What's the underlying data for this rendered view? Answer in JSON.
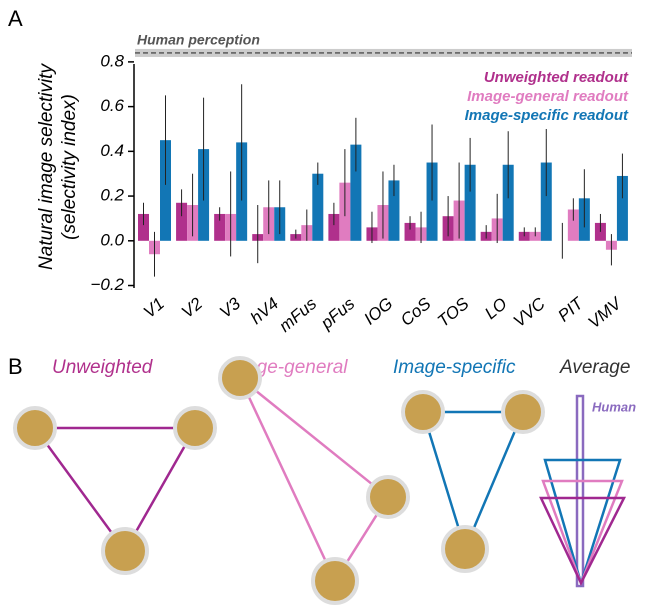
{
  "panel_label": "A",
  "chart_data": {
    "type": "bar",
    "ylabel": [
      "Natural image selectivity",
      "(selectivity index)"
    ],
    "categories": [
      "V1",
      "V2",
      "V3",
      "hV4",
      "mFus",
      "pFus",
      "IOG",
      "CoS",
      "TOS",
      "LO",
      "VVC",
      "PIT",
      "VMV"
    ],
    "series": [
      {
        "name": "Unweighted readout",
        "color": "#b0308c",
        "values": [
          0.12,
          0.17,
          0.12,
          0.03,
          0.03,
          0.12,
          0.06,
          0.08,
          0.11,
          0.04,
          0.04,
          0.0,
          0.08
        ],
        "errors": [
          0.05,
          0.06,
          0.03,
          0.13,
          0.02,
          0.05,
          0.07,
          0.03,
          0.09,
          0.03,
          0.02,
          0.08,
          0.04
        ]
      },
      {
        "name": "Image-general readout",
        "color": "#e07cc0",
        "values": [
          -0.06,
          0.16,
          0.12,
          0.15,
          0.07,
          0.26,
          0.16,
          0.06,
          0.18,
          0.1,
          0.04,
          0.14,
          -0.04
        ],
        "errors": [
          0.1,
          0.14,
          0.19,
          0.12,
          0.07,
          0.15,
          0.15,
          0.07,
          0.17,
          0.11,
          0.02,
          0.05,
          0.07
        ]
      },
      {
        "name": "Image-specific readout",
        "color": "#1276b5",
        "values": [
          0.45,
          0.41,
          0.44,
          0.15,
          0.3,
          0.43,
          0.27,
          0.35,
          0.34,
          0.34,
          0.35,
          0.19,
          0.29
        ],
        "errors": [
          0.2,
          0.23,
          0.26,
          0.12,
          0.05,
          0.12,
          0.07,
          0.17,
          0.12,
          0.15,
          0.15,
          0.13,
          0.1
        ]
      }
    ],
    "reference": {
      "label": "Human perception",
      "value": 0.84
    },
    "ylim": [
      -0.22,
      0.88
    ],
    "yticks": [
      {
        "value": -0.2,
        "label": "−0.2"
      },
      {
        "value": 0,
        "label": "0.0"
      },
      0.2,
      0.4,
      0.6,
      0.8
    ],
    "legend": "top-right"
  },
  "panel_b": {
    "label": "B",
    "titles": [
      "Unweighted",
      "Image-general",
      "Image-specific",
      "Average"
    ],
    "average_marker": "Human"
  }
}
